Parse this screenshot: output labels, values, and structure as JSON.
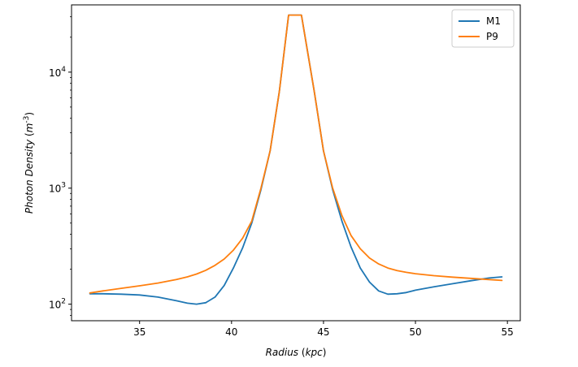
{
  "chart_data": {
    "type": "line",
    "title": "",
    "xlabel": "Radius (kpc)",
    "ylabel": "Photon Density (m^-3)",
    "xlim": [
      31.3,
      55.7
    ],
    "ylim": [
      72,
      38000
    ],
    "yscale": "log",
    "x_ticks": [
      35,
      40,
      45,
      50,
      55
    ],
    "y_ticks": [
      {
        "value": 100,
        "base": "10",
        "exp": "2"
      },
      {
        "value": 1000,
        "base": "10",
        "exp": "3"
      },
      {
        "value": 10000,
        "base": "10",
        "exp": "4"
      }
    ],
    "grid": false,
    "legend": "top-right",
    "series": [
      {
        "name": "M1",
        "color": "#1f77b4",
        "x": [
          32.3,
          33.0,
          34.0,
          35.0,
          36.0,
          37.0,
          37.6,
          38.1,
          38.6,
          39.1,
          39.6,
          40.1,
          40.6,
          41.1,
          41.6,
          42.1,
          42.6,
          43.1,
          43.8,
          44.5,
          45.0,
          45.5,
          46.0,
          46.5,
          47.0,
          47.5,
          48.0,
          48.5,
          49.0,
          49.5,
          50.0,
          51.0,
          52.0,
          53.0,
          54.0,
          54.7
        ],
        "y": [
          123,
          123,
          122,
          120,
          115,
          107,
          102,
          100,
          103,
          115,
          145,
          205,
          305,
          500,
          970,
          2100,
          6800,
          31000,
          31000,
          6800,
          2100,
          970,
          520,
          310,
          205,
          155,
          130,
          122,
          123,
          126,
          132,
          141,
          150,
          159,
          168,
          172
        ]
      },
      {
        "name": "P9",
        "color": "#ff7f0e",
        "x": [
          32.3,
          33.0,
          34.0,
          35.0,
          36.0,
          37.0,
          37.6,
          38.1,
          38.6,
          39.1,
          39.6,
          40.1,
          40.6,
          41.1,
          41.6,
          42.1,
          42.6,
          43.1,
          43.8,
          44.5,
          45.0,
          45.5,
          46.0,
          46.5,
          47.0,
          47.5,
          48.0,
          48.5,
          49.0,
          49.5,
          50.0,
          51.0,
          52.0,
          53.0,
          54.0,
          54.7
        ],
        "y": [
          125,
          130,
          137,
          144,
          152,
          163,
          172,
          182,
          196,
          216,
          245,
          292,
          370,
          520,
          1000,
          2100,
          6800,
          31000,
          31000,
          6800,
          2100,
          1000,
          580,
          390,
          300,
          250,
          222,
          205,
          195,
          188,
          183,
          176,
          171,
          167,
          163,
          160
        ]
      }
    ]
  }
}
